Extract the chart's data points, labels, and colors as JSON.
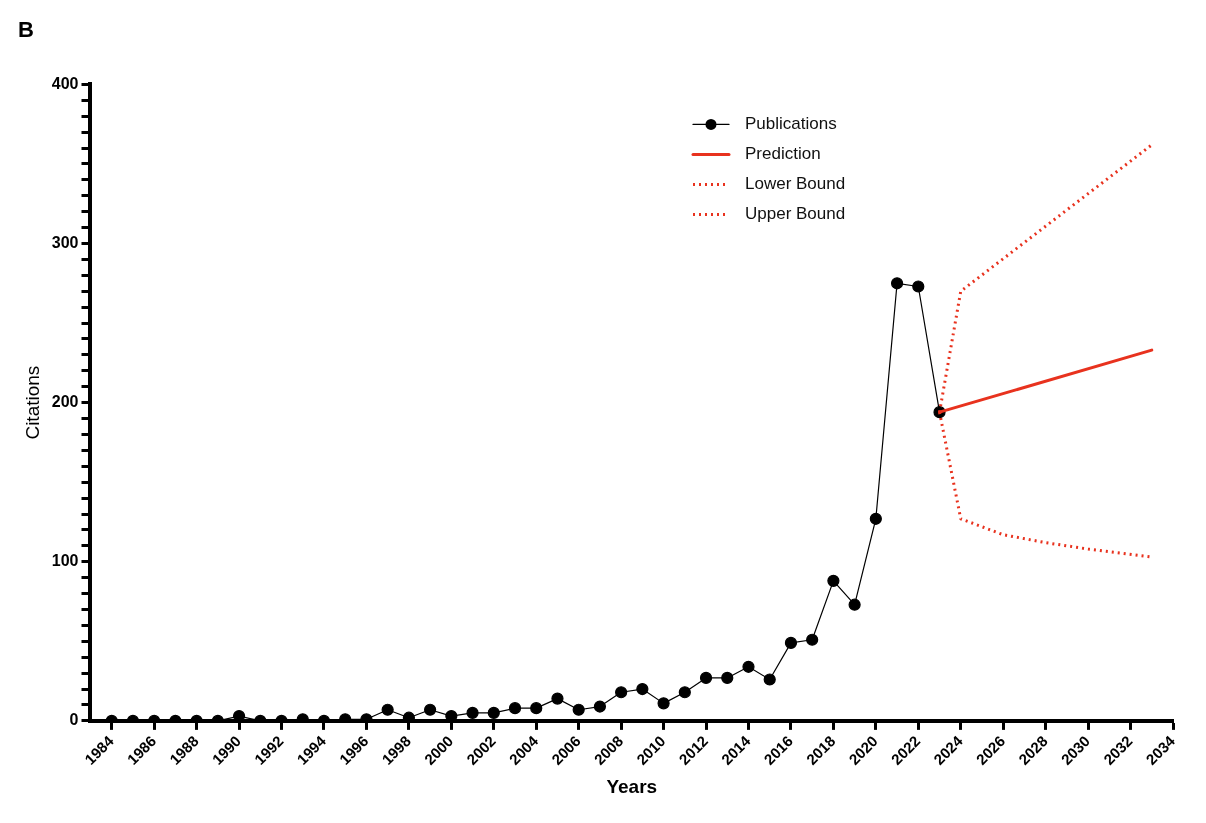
{
  "chart_data": {
    "type": "line",
    "title": "B",
    "xlabel": "Years",
    "ylabel": "Citations",
    "xlim": [
      1983,
      2034
    ],
    "xticks": [
      1984,
      1986,
      1988,
      1990,
      1992,
      1994,
      1996,
      1998,
      2000,
      2002,
      2004,
      2006,
      2008,
      2010,
      2012,
      2014,
      2016,
      2018,
      2020,
      2022,
      2024,
      2026,
      2028,
      2030,
      2032,
      2034
    ],
    "ylim": [
      0,
      400
    ],
    "yticks": [
      0,
      {
        "value": 10,
        "label": null
      },
      {
        "value": 20,
        "label": null
      },
      {
        "value": 30,
        "label": null
      },
      {
        "value": 40,
        "label": null
      },
      {
        "value": 50,
        "label": null
      },
      {
        "value": 60,
        "label": null
      },
      {
        "value": 70,
        "label": null
      },
      {
        "value": 80,
        "label": null
      },
      {
        "value": 90,
        "label": null
      },
      100,
      {
        "value": 110,
        "label": null
      },
      {
        "value": 120,
        "label": null
      },
      {
        "value": 130,
        "label": null
      },
      {
        "value": 140,
        "label": null
      },
      {
        "value": 150,
        "label": null
      },
      {
        "value": 160,
        "label": null
      },
      {
        "value": 170,
        "label": null
      },
      {
        "value": 180,
        "label": null
      },
      {
        "value": 190,
        "label": null
      },
      200,
      {
        "value": 210,
        "label": null
      },
      {
        "value": 220,
        "label": null
      },
      {
        "value": 230,
        "label": null
      },
      {
        "value": 240,
        "label": null
      },
      {
        "value": 250,
        "label": null
      },
      {
        "value": 260,
        "label": null
      },
      {
        "value": 270,
        "label": null
      },
      {
        "value": 280,
        "label": null
      },
      {
        "value": 290,
        "label": null
      },
      300,
      {
        "value": 310,
        "label": null
      },
      {
        "value": 320,
        "label": null
      },
      {
        "value": 330,
        "label": null
      },
      {
        "value": 340,
        "label": null
      },
      {
        "value": 350,
        "label": null
      },
      {
        "value": 360,
        "label": null
      },
      {
        "value": 370,
        "label": null
      },
      {
        "value": 380,
        "label": null
      },
      {
        "value": 390,
        "label": null
      },
      400
    ],
    "grid": false,
    "legend": "top right",
    "series": [
      {
        "name": "Publications",
        "color": "#000000",
        "marker": "circle",
        "line_style": "solid",
        "x": [
          1984,
          1985,
          1986,
          1987,
          1988,
          1989,
          1990,
          1991,
          1992,
          1993,
          1994,
          1995,
          1996,
          1997,
          1998,
          1999,
          2000,
          2001,
          2002,
          2003,
          2004,
          2005,
          2006,
          2007,
          2008,
          2009,
          2010,
          2011,
          2012,
          2013,
          2014,
          2015,
          2016,
          2017,
          2018,
          2019,
          2020,
          2021,
          2022,
          2023
        ],
        "values": [
          0,
          0,
          0,
          0,
          0,
          0,
          3,
          0,
          0,
          1,
          0,
          1,
          1,
          7,
          2,
          7,
          3,
          5,
          5,
          8,
          8,
          14,
          7,
          9,
          18,
          20,
          11,
          18,
          27,
          27,
          34,
          26,
          49,
          51,
          88,
          73,
          127,
          275,
          273,
          194
        ]
      },
      {
        "name": "Prediction",
        "color": "#e8321e",
        "marker": "none",
        "line_style": "solid",
        "x": [
          2023,
          2033
        ],
        "values": [
          194,
          233
        ]
      },
      {
        "name": "Lower Bound",
        "color": "#e8321e",
        "marker": "none",
        "line_style": "dotted",
        "x": [
          2023,
          2024,
          2026,
          2028,
          2030,
          2033
        ],
        "values": [
          194,
          127,
          117,
          112,
          108,
          103
        ]
      },
      {
        "name": "Upper Bound",
        "color": "#e8321e",
        "marker": "none",
        "line_style": "dotted",
        "x": [
          2023,
          2024,
          2033
        ],
        "values": [
          194,
          270,
          362
        ]
      }
    ]
  }
}
